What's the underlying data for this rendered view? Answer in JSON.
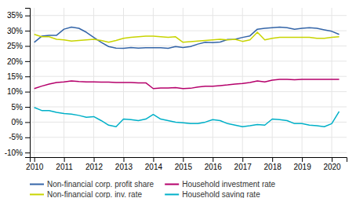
{
  "chart_data": {
    "type": "line",
    "x": [
      2010,
      2010.25,
      2010.5,
      2010.75,
      2011,
      2011.25,
      2011.5,
      2011.75,
      2012,
      2012.25,
      2012.5,
      2012.75,
      2013,
      2013.25,
      2013.5,
      2013.75,
      2014,
      2014.25,
      2014.5,
      2014.75,
      2015,
      2015.25,
      2015.5,
      2015.75,
      2016,
      2016.25,
      2016.5,
      2016.75,
      2017,
      2017.25,
      2017.5,
      2017.75,
      2018,
      2018.25,
      2018.5,
      2018.75,
      2019,
      2019.25,
      2019.5,
      2019.75,
      2020,
      2020.25
    ],
    "series": [
      {
        "name": "Non-financial corp. profit share",
        "color": "#3465a8",
        "values": [
          0.262,
          0.282,
          0.285,
          0.285,
          0.305,
          0.312,
          0.308,
          0.295,
          0.278,
          0.262,
          0.248,
          0.243,
          0.242,
          0.245,
          0.243,
          0.244,
          0.244,
          0.244,
          0.242,
          0.248,
          0.245,
          0.248,
          0.256,
          0.262,
          0.261,
          0.263,
          0.271,
          0.272,
          0.278,
          0.283,
          0.305,
          0.308,
          0.31,
          0.312,
          0.31,
          0.305,
          0.308,
          0.31,
          0.308,
          0.303,
          0.298,
          0.288
        ]
      },
      {
        "name": "Household investment rate",
        "color": "#b5006b",
        "values": [
          0.11,
          0.118,
          0.125,
          0.13,
          0.132,
          0.135,
          0.133,
          0.132,
          0.132,
          0.131,
          0.131,
          0.13,
          0.13,
          0.13,
          0.129,
          0.129,
          0.11,
          0.112,
          0.112,
          0.113,
          0.11,
          0.111,
          0.115,
          0.118,
          0.118,
          0.12,
          0.122,
          0.125,
          0.127,
          0.13,
          0.135,
          0.132,
          0.138,
          0.14,
          0.14,
          0.139,
          0.14,
          0.14,
          0.14,
          0.14,
          0.14,
          0.14
        ]
      },
      {
        "name": "Non-financial corp. inv. rate",
        "color": "#c8d400",
        "values": [
          0.288,
          0.28,
          0.28,
          0.272,
          0.27,
          0.266,
          0.268,
          0.27,
          0.272,
          0.268,
          0.262,
          0.268,
          0.275,
          0.278,
          0.28,
          0.282,
          0.282,
          0.28,
          0.278,
          0.28,
          0.262,
          0.264,
          0.266,
          0.268,
          0.27,
          0.272,
          0.27,
          0.272,
          0.265,
          0.27,
          0.295,
          0.27,
          0.275,
          0.278,
          0.278,
          0.278,
          0.278,
          0.278,
          0.275,
          0.275,
          0.278,
          0.28
        ]
      },
      {
        "name": "Household saving rate",
        "color": "#00b0c8",
        "values": [
          0.048,
          0.038,
          0.038,
          0.032,
          0.028,
          0.026,
          0.022,
          0.016,
          0.018,
          0.005,
          -0.01,
          -0.015,
          0.01,
          0.008,
          0.005,
          0.01,
          0.025,
          0.01,
          0.005,
          0.0,
          -0.002,
          -0.005,
          -0.005,
          0.0,
          0.008,
          0.005,
          -0.005,
          -0.01,
          -0.015,
          -0.012,
          -0.008,
          -0.01,
          0.01,
          0.008,
          0.005,
          -0.005,
          -0.005,
          -0.01,
          -0.012,
          -0.015,
          -0.005,
          0.035
        ]
      }
    ],
    "xlim": [
      2009.85,
      2020.5
    ],
    "ylim": [
      -0.115,
      0.375
    ],
    "xticks": [
      2010,
      2011,
      2012,
      2013,
      2014,
      2015,
      2016,
      2017,
      2018,
      2019,
      2020
    ],
    "yticks": [
      {
        "value": -0.1,
        "label": "-10%"
      },
      {
        "value": -0.05,
        "label": "-5%"
      },
      {
        "value": 0.0,
        "label": "0%"
      },
      {
        "value": 0.05,
        "label": "5%"
      },
      {
        "value": 0.1,
        "label": "10%"
      },
      {
        "value": 0.15,
        "label": "15%"
      },
      {
        "value": 0.2,
        "label": "20%"
      },
      {
        "value": 0.25,
        "label": "25%"
      },
      {
        "value": 0.3,
        "label": "30%"
      },
      {
        "value": 0.35,
        "label": "35%"
      }
    ],
    "grid": true,
    "legend": "bottom"
  }
}
